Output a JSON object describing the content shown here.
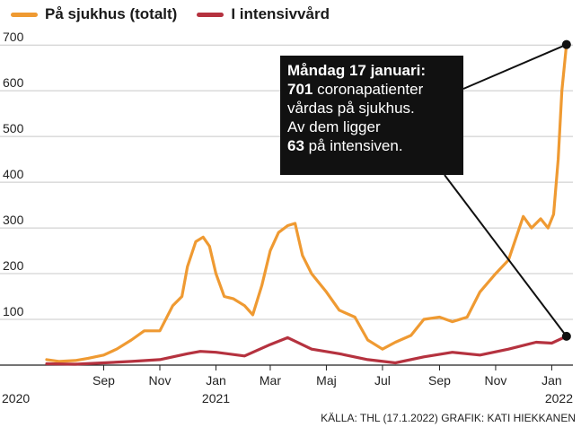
{
  "chart_data": {
    "type": "line",
    "series": [
      {
        "name": "På sjukhus (totalt)",
        "color": "#ef9a32",
        "points": [
          [
            "2020-07-01",
            12
          ],
          [
            "2020-07-15",
            8
          ],
          [
            "2020-08-01",
            10
          ],
          [
            "2020-08-15",
            15
          ],
          [
            "2020-09-01",
            22
          ],
          [
            "2020-09-15",
            35
          ],
          [
            "2020-10-01",
            55
          ],
          [
            "2020-10-15",
            75
          ],
          [
            "2020-11-01",
            75
          ],
          [
            "2020-11-15",
            130
          ],
          [
            "2020-11-25",
            150
          ],
          [
            "2020-12-01",
            215
          ],
          [
            "2020-12-10",
            270
          ],
          [
            "2020-12-18",
            280
          ],
          [
            "2020-12-25",
            260
          ],
          [
            "2021-01-01",
            200
          ],
          [
            "2021-01-10",
            150
          ],
          [
            "2021-01-20",
            145
          ],
          [
            "2021-02-01",
            130
          ],
          [
            "2021-02-10",
            110
          ],
          [
            "2021-02-20",
            175
          ],
          [
            "2021-03-01",
            250
          ],
          [
            "2021-03-10",
            290
          ],
          [
            "2021-03-20",
            305
          ],
          [
            "2021-03-28",
            310
          ],
          [
            "2021-04-05",
            240
          ],
          [
            "2021-04-15",
            200
          ],
          [
            "2021-05-01",
            160
          ],
          [
            "2021-05-15",
            120
          ],
          [
            "2021-06-01",
            105
          ],
          [
            "2021-06-15",
            55
          ],
          [
            "2021-07-01",
            35
          ],
          [
            "2021-07-15",
            50
          ],
          [
            "2021-08-01",
            65
          ],
          [
            "2021-08-15",
            100
          ],
          [
            "2021-09-01",
            105
          ],
          [
            "2021-09-15",
            95
          ],
          [
            "2021-10-01",
            105
          ],
          [
            "2021-10-15",
            160
          ],
          [
            "2021-11-01",
            200
          ],
          [
            "2021-11-15",
            230
          ],
          [
            "2021-12-01",
            325
          ],
          [
            "2021-12-10",
            300
          ],
          [
            "2021-12-20",
            320
          ],
          [
            "2021-12-28",
            300
          ],
          [
            "2022-01-03",
            330
          ],
          [
            "2022-01-08",
            450
          ],
          [
            "2022-01-12",
            600
          ],
          [
            "2022-01-17",
            701
          ]
        ]
      },
      {
        "name": "I intensivvård",
        "color": "#b5323f",
        "points": [
          [
            "2020-07-01",
            3
          ],
          [
            "2020-08-01",
            2
          ],
          [
            "2020-09-01",
            5
          ],
          [
            "2020-10-01",
            8
          ],
          [
            "2020-11-01",
            12
          ],
          [
            "2020-12-01",
            25
          ],
          [
            "2020-12-15",
            30
          ],
          [
            "2021-01-01",
            28
          ],
          [
            "2021-02-01",
            20
          ],
          [
            "2021-03-01",
            45
          ],
          [
            "2021-03-20",
            60
          ],
          [
            "2021-04-15",
            35
          ],
          [
            "2021-05-15",
            25
          ],
          [
            "2021-06-15",
            12
          ],
          [
            "2021-07-15",
            5
          ],
          [
            "2021-08-15",
            18
          ],
          [
            "2021-09-15",
            28
          ],
          [
            "2021-10-15",
            22
          ],
          [
            "2021-11-15",
            35
          ],
          [
            "2021-12-15",
            50
          ],
          [
            "2022-01-01",
            48
          ],
          [
            "2022-01-17",
            63
          ]
        ]
      }
    ],
    "ylim": [
      0,
      720
    ],
    "yticks": [
      100,
      200,
      300,
      400,
      500,
      600,
      700
    ],
    "xticks": [
      {
        "label": "Sep",
        "date": "2020-09-01"
      },
      {
        "label": "Nov",
        "date": "2020-11-01"
      },
      {
        "label": "Jan",
        "date": "2021-01-01"
      },
      {
        "label": "Mar",
        "date": "2021-03-01"
      },
      {
        "label": "Maj",
        "date": "2021-05-01"
      },
      {
        "label": "Jul",
        "date": "2021-07-01"
      },
      {
        "label": "Sep",
        "date": "2021-09-01"
      },
      {
        "label": "Nov",
        "date": "2021-11-01"
      },
      {
        "label": "Jan",
        "date": "2022-01-01"
      }
    ],
    "year_labels": [
      {
        "label": "2020",
        "date": "2020-07-01"
      },
      {
        "label": "2021",
        "date": "2021-01-01"
      },
      {
        "label": "2022",
        "date": "2022-01-01"
      }
    ],
    "x_start": "2020-07-01",
    "x_end": "2022-01-24",
    "grid": "horizontal",
    "legend": "top-left",
    "annotation": {
      "line1": "Måndag 17 januari:",
      "line2_bold": "701",
      "line2_rest": " coronapatienter",
      "line3": "vårdas på sjukhus.",
      "line4": "Av dem ligger",
      "line5_bold": "63",
      "line5_rest": " på intensiven."
    }
  },
  "source": "KÄLLA: THL (17.1.2022) GRAFIK: KATI HIEKKANEN"
}
